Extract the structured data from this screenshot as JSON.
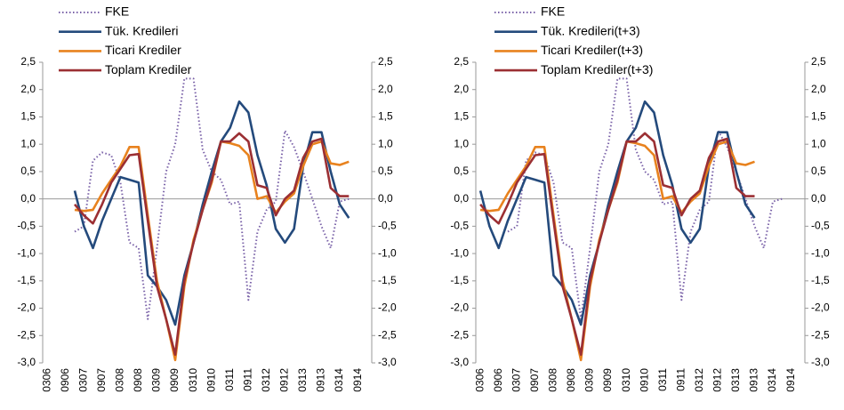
{
  "chart_data": [
    {
      "type": "line",
      "legend": "upper left",
      "categories": [
        "0306",
        null,
        "0906",
        null,
        "0307",
        null,
        "0907",
        null,
        "0308",
        null,
        "0908",
        null,
        "0309",
        null,
        "0909",
        null,
        "0310",
        null,
        "0910",
        null,
        "0311",
        null,
        "0911",
        null,
        "0312",
        null,
        "0912",
        null,
        "0313",
        null,
        "0913",
        null,
        "0314",
        null,
        "0914",
        null
      ],
      "ylim": [
        -3.0,
        2.5
      ],
      "yticks": [
        {
          "value": 2.5,
          "label": "2,5"
        },
        {
          "value": 2.0,
          "label": "2,0"
        },
        {
          "value": 1.5,
          "label": "1,5"
        },
        {
          "value": 1.0,
          "label": "1,0"
        },
        {
          "value": 0.5,
          "label": "0,5"
        },
        {
          "value": 0.0,
          "label": "0,0"
        },
        {
          "value": -0.5,
          "label": "-0,5"
        },
        {
          "value": -1.0,
          "label": "-1,0"
        },
        {
          "value": -1.5,
          "label": "-1,5"
        },
        {
          "value": -2.0,
          "label": "-2,0"
        },
        {
          "value": -2.5,
          "label": "-2,5"
        },
        {
          "value": -3.0,
          "label": "-3,0"
        }
      ],
      "y2lim": [
        -3.0,
        2.5
      ],
      "y2ticks": [
        {
          "value": 2.5,
          "label": "2,5"
        },
        {
          "value": 2.0,
          "label": "2,0"
        },
        {
          "value": 1.5,
          "label": "1,5"
        },
        {
          "value": 1.0,
          "label": "1,0"
        },
        {
          "value": 0.5,
          "label": "0,5"
        },
        {
          "value": 0.0,
          "label": "0,0"
        },
        {
          "value": -0.5,
          "label": "-0,5"
        },
        {
          "value": -1.0,
          "label": "-1,0"
        },
        {
          "value": -1.5,
          "label": "-1,5"
        },
        {
          "value": -2.0,
          "label": "-2,0"
        },
        {
          "value": -2.5,
          "label": "-2,5"
        },
        {
          "value": -3.0,
          "label": "-3,0"
        }
      ],
      "series": [
        {
          "name": "FKE",
          "color": "#7a62a8",
          "line_style": "dotted",
          "values": [
            null,
            null,
            null,
            -0.6,
            -0.5,
            0.7,
            0.85,
            0.8,
            0.3,
            -0.8,
            -0.9,
            -2.2,
            -0.9,
            0.5,
            1.0,
            2.2,
            2.2,
            0.9,
            0.5,
            0.35,
            -0.1,
            -0.05,
            -1.85,
            -0.6,
            -0.2,
            -0.05,
            1.25,
            0.95,
            0.5,
            0.0,
            -0.5,
            -0.9,
            -0.05,
            0.0,
            null,
            null
          ]
        },
        {
          "name": "Tük. Kredileri",
          "color": "#244a7c",
          "line_style": "solid",
          "values": [
            null,
            null,
            null,
            0.15,
            -0.5,
            -0.9,
            -0.4,
            0.0,
            0.4,
            0.35,
            0.3,
            -1.4,
            -1.6,
            -1.85,
            -2.3,
            -1.4,
            -0.8,
            -0.1,
            0.5,
            1.05,
            1.3,
            1.78,
            1.58,
            0.8,
            0.25,
            -0.55,
            -0.8,
            -0.55,
            0.6,
            1.22,
            1.22,
            0.5,
            -0.1,
            -0.35,
            null,
            null
          ]
        },
        {
          "name": "Ticari Krediler",
          "color": "#e8821e",
          "line_style": "solid",
          "values": [
            null,
            null,
            null,
            -0.2,
            -0.22,
            -0.2,
            0.1,
            0.35,
            0.6,
            0.95,
            0.95,
            -0.3,
            -1.5,
            -2.2,
            -2.95,
            -1.6,
            -0.75,
            -0.2,
            0.3,
            1.05,
            1.02,
            0.97,
            0.8,
            0.0,
            0.05,
            -0.25,
            -0.05,
            0.1,
            0.6,
            1.0,
            1.05,
            0.65,
            0.62,
            0.68,
            null,
            null
          ]
        },
        {
          "name": "Toplam Krediler",
          "color": "#9b2f33",
          "line_style": "solid",
          "values": [
            null,
            null,
            null,
            -0.1,
            -0.3,
            -0.45,
            -0.1,
            0.3,
            0.55,
            0.8,
            0.82,
            -0.4,
            -1.6,
            -2.2,
            -2.85,
            -1.5,
            -0.8,
            -0.2,
            0.35,
            1.05,
            1.05,
            1.2,
            1.05,
            0.25,
            0.2,
            -0.3,
            0.0,
            0.15,
            0.75,
            1.05,
            1.1,
            0.2,
            0.05,
            0.05,
            null,
            null
          ]
        }
      ]
    },
    {
      "type": "line",
      "legend": "upper left",
      "categories": [
        "0306",
        null,
        "0906",
        null,
        "0307",
        null,
        "0907",
        null,
        "0308",
        null,
        "0908",
        null,
        "0309",
        null,
        "0909",
        null,
        "0310",
        null,
        "0910",
        null,
        "0311",
        null,
        "0911",
        null,
        "0312",
        null,
        "0912",
        null,
        "0313",
        null,
        "0913",
        null,
        "0314",
        null,
        "0914",
        null
      ],
      "ylim": [
        -3.0,
        2.5
      ],
      "yticks": [
        {
          "value": 2.5,
          "label": "2,5"
        },
        {
          "value": 2.0,
          "label": "2,0"
        },
        {
          "value": 1.5,
          "label": "1,5"
        },
        {
          "value": 1.0,
          "label": "1,0"
        },
        {
          "value": 0.5,
          "label": "0,5"
        },
        {
          "value": 0.0,
          "label": "0,0"
        },
        {
          "value": -0.5,
          "label": "-0,5"
        },
        {
          "value": -1.0,
          "label": "-1,0"
        },
        {
          "value": -1.5,
          "label": "-1,5"
        },
        {
          "value": -2.0,
          "label": "-2,0"
        },
        {
          "value": -2.5,
          "label": "-2,5"
        },
        {
          "value": -3.0,
          "label": "-3,0"
        }
      ],
      "y2lim": [
        -3.0,
        2.5
      ],
      "y2ticks": [
        {
          "value": 2.5,
          "label": "2,5"
        },
        {
          "value": 2.0,
          "label": "2,0"
        },
        {
          "value": 1.5,
          "label": "1,5"
        },
        {
          "value": 1.0,
          "label": "1,0"
        },
        {
          "value": 0.5,
          "label": "0,5"
        },
        {
          "value": 0.0,
          "label": "0,0"
        },
        {
          "value": -0.5,
          "label": "-0,5"
        },
        {
          "value": -1.0,
          "label": "-1,0"
        },
        {
          "value": -1.5,
          "label": "-1,5"
        },
        {
          "value": -2.0,
          "label": "-2,0"
        },
        {
          "value": -2.5,
          "label": "-2,5"
        },
        {
          "value": -3.0,
          "label": "-3,0"
        }
      ],
      "series": [
        {
          "name": "FKE",
          "color": "#7a62a8",
          "line_style": "dotted",
          "values": [
            null,
            null,
            null,
            -0.6,
            -0.5,
            0.7,
            0.85,
            0.8,
            0.3,
            -0.8,
            -0.9,
            -2.2,
            -0.9,
            0.5,
            1.0,
            2.2,
            2.2,
            0.9,
            0.5,
            0.35,
            -0.1,
            -0.05,
            -1.85,
            -0.6,
            -0.2,
            -0.05,
            1.25,
            0.95,
            0.5,
            0.0,
            -0.5,
            -0.9,
            -0.05,
            0.0,
            null,
            null
          ]
        },
        {
          "name": "Tük. Kredileri(t+3)",
          "color": "#244a7c",
          "line_style": "solid",
          "values": [
            0.15,
            -0.5,
            -0.9,
            -0.4,
            0.0,
            0.4,
            0.35,
            0.3,
            -1.4,
            -1.6,
            -1.85,
            -2.3,
            -1.4,
            -0.8,
            -0.1,
            0.5,
            1.05,
            1.3,
            1.78,
            1.58,
            0.8,
            0.25,
            -0.55,
            -0.8,
            -0.55,
            0.6,
            1.22,
            1.22,
            0.5,
            -0.1,
            -0.35,
            null,
            null,
            null,
            null,
            null
          ]
        },
        {
          "name": "Ticari Krediler(t+3)",
          "color": "#e8821e",
          "line_style": "solid",
          "values": [
            -0.2,
            -0.22,
            -0.2,
            0.1,
            0.35,
            0.6,
            0.95,
            0.95,
            -0.3,
            -1.5,
            -2.2,
            -2.95,
            -1.6,
            -0.75,
            -0.2,
            0.3,
            1.05,
            1.02,
            0.97,
            0.8,
            0.0,
            0.05,
            -0.25,
            -0.05,
            0.1,
            0.6,
            1.0,
            1.05,
            0.65,
            0.62,
            0.68,
            null,
            null,
            null,
            null,
            null
          ]
        },
        {
          "name": "Toplam Krediler(t+3)",
          "color": "#9b2f33",
          "line_style": "solid",
          "values": [
            -0.1,
            -0.3,
            -0.45,
            -0.1,
            0.3,
            0.55,
            0.8,
            0.82,
            -0.4,
            -1.6,
            -2.2,
            -2.85,
            -1.5,
            -0.8,
            -0.2,
            0.35,
            1.05,
            1.05,
            1.2,
            1.05,
            0.25,
            0.2,
            -0.3,
            0.0,
            0.15,
            0.75,
            1.05,
            1.1,
            0.2,
            0.05,
            0.05,
            null,
            null,
            null,
            null,
            null
          ]
        }
      ]
    }
  ]
}
